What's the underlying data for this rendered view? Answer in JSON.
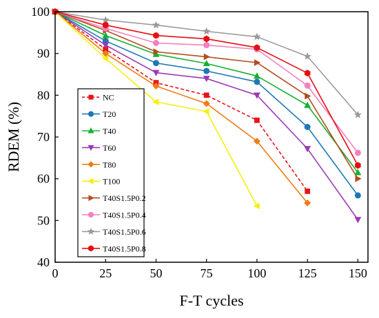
{
  "chart_data": {
    "type": "line",
    "xlabel": "F-T cycles",
    "ylabel": "RDEM  (%)",
    "xlim": [
      0,
      155
    ],
    "ylim": [
      40,
      100
    ],
    "xticks": [
      "0",
      "25",
      "50",
      "75",
      "100",
      "125",
      "150"
    ],
    "yticks": [
      "40",
      "50",
      "60",
      "70",
      "80",
      "90",
      "100"
    ],
    "legend_position": "lower-left",
    "grid": false,
    "series": [
      {
        "name": "NC",
        "color": "#e8141c",
        "marker": "square",
        "dash": true,
        "x": [
          0,
          25,
          50,
          75,
          100,
          125
        ],
        "y": [
          100,
          91,
          83,
          80,
          74,
          57
        ]
      },
      {
        "name": "T20",
        "color": "#1f77b4",
        "marker": "circle",
        "dash": false,
        "x": [
          0,
          25,
          50,
          75,
          100,
          125,
          150
        ],
        "y": [
          100,
          93,
          87.7,
          85.8,
          83.2,
          72.4,
          56
        ]
      },
      {
        "name": "T40",
        "color": "#16b030",
        "marker": "triangle-up",
        "dash": false,
        "x": [
          0,
          25,
          50,
          75,
          100,
          125,
          150
        ],
        "y": [
          100,
          94.3,
          89.8,
          87.6,
          84.6,
          77.6,
          61.5
        ]
      },
      {
        "name": "T60",
        "color": "#9b3ab5",
        "marker": "triangle-down",
        "dash": false,
        "x": [
          0,
          25,
          50,
          75,
          100,
          125,
          150
        ],
        "y": [
          100,
          92,
          85.4,
          84,
          80,
          67.2,
          50.2
        ]
      },
      {
        "name": "T80",
        "color": "#f07c13",
        "marker": "diamond",
        "dash": false,
        "x": [
          0,
          25,
          50,
          75,
          100,
          125
        ],
        "y": [
          100,
          90,
          82.2,
          78,
          69,
          54.2
        ]
      },
      {
        "name": "T100",
        "color": "#f5f00c",
        "marker": "triangle-left",
        "dash": false,
        "x": [
          0,
          25,
          50,
          75,
          100
        ],
        "y": [
          100,
          88.8,
          78.4,
          76.1,
          53.5
        ]
      },
      {
        "name": "T40S1.5P0.2",
        "color": "#b14d1e",
        "marker": "triangle-right",
        "dash": false,
        "x": [
          0,
          25,
          50,
          75,
          100,
          125,
          150
        ],
        "y": [
          100,
          95.5,
          90.4,
          89.2,
          87.8,
          79.8,
          60
        ]
      },
      {
        "name": "T40S1.5P0.4",
        "color": "#f57fc0",
        "marker": "circle",
        "dash": false,
        "x": [
          0,
          25,
          50,
          75,
          100,
          125,
          150
        ],
        "y": [
          100,
          96,
          92.5,
          92,
          91,
          82.3,
          66.2
        ]
      },
      {
        "name": "T40S1.5P0.6",
        "color": "#9a9a9a",
        "marker": "star",
        "dash": false,
        "x": [
          0,
          25,
          50,
          75,
          100,
          125,
          150
        ],
        "y": [
          100,
          98,
          96.8,
          95.3,
          94,
          89.3,
          75.3
        ]
      },
      {
        "name": "T40S1.5P0.8",
        "color": "#e80d12",
        "marker": "hexagon",
        "dash": false,
        "x": [
          0,
          25,
          50,
          75,
          100,
          125,
          150
        ],
        "y": [
          100,
          96.8,
          94.3,
          93.5,
          91.4,
          85.3,
          63.2
        ]
      }
    ]
  }
}
